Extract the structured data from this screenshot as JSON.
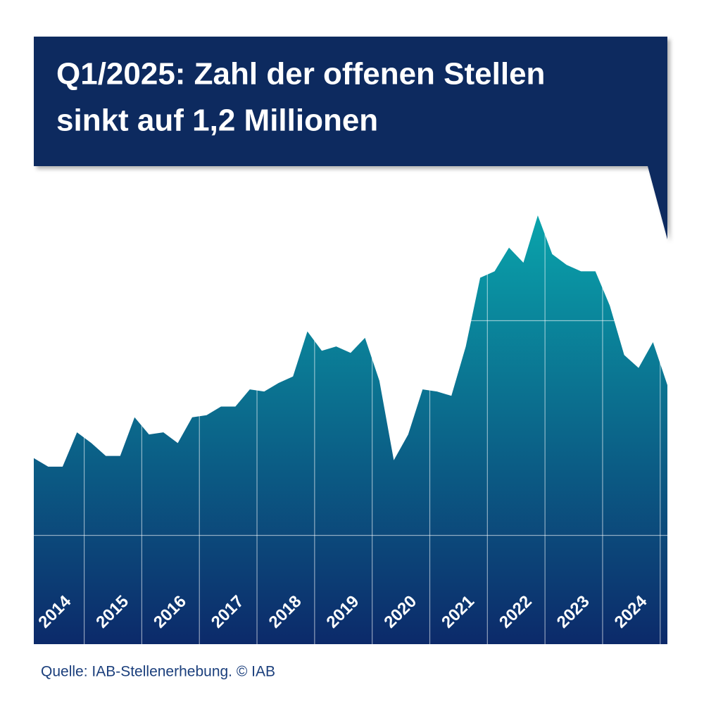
{
  "chart_data": {
    "type": "area",
    "title": [
      "Q1/2025: Zahl der offenen Stellen",
      "sinkt auf 1,2 Millionen"
    ],
    "source": "Quelle: IAB-Stellenerhebung. © IAB",
    "x": [
      2014.125,
      2014.375,
      2014.625,
      2014.875,
      2015.125,
      2015.375,
      2015.625,
      2015.875,
      2016.125,
      2016.375,
      2016.625,
      2016.875,
      2017.125,
      2017.375,
      2017.625,
      2017.875,
      2018.125,
      2018.375,
      2018.625,
      2018.875,
      2019.125,
      2019.375,
      2019.625,
      2019.875,
      2020.125,
      2020.375,
      2020.625,
      2020.875,
      2021.125,
      2021.375,
      2021.625,
      2021.875,
      2022.125,
      2022.375,
      2022.625,
      2022.875,
      2023.125,
      2023.375,
      2023.625,
      2023.875,
      2024.125,
      2024.375,
      2024.625,
      2024.875,
      2025.125
    ],
    "values": [
      0.86,
      0.82,
      0.82,
      0.98,
      0.93,
      0.87,
      0.87,
      1.05,
      0.97,
      0.98,
      0.93,
      1.05,
      1.06,
      1.1,
      1.1,
      1.18,
      1.17,
      1.21,
      1.24,
      1.45,
      1.36,
      1.38,
      1.35,
      1.42,
      1.22,
      0.85,
      0.97,
      1.18,
      1.17,
      1.15,
      1.38,
      1.7,
      1.73,
      1.84,
      1.77,
      1.99,
      1.81,
      1.76,
      1.73,
      1.73,
      1.57,
      1.34,
      1.28,
      1.4,
      1.2
    ],
    "color_top": "#0aa5ac",
    "color_bottom": "#0c2a6a",
    "xlim": [
      2014.125,
      2025.125
    ],
    "xticks": [
      {
        "value": 2014,
        "label": "2014"
      },
      {
        "value": 2015,
        "label": "2015"
      },
      {
        "value": 2016,
        "label": "2016"
      },
      {
        "value": 2017,
        "label": "2017"
      },
      {
        "value": 2018,
        "label": "2018"
      },
      {
        "value": 2019,
        "label": "2019"
      },
      {
        "value": 2020,
        "label": "2020"
      },
      {
        "value": 2021,
        "label": "2021"
      },
      {
        "value": 2022,
        "label": "2022"
      },
      {
        "value": 2023,
        "label": "2023"
      },
      {
        "value": 2024,
        "label": "2024"
      }
    ],
    "ylim": [
      0,
      2.2
    ],
    "yticks": [
      0.5,
      1.5
    ],
    "grid": true
  }
}
